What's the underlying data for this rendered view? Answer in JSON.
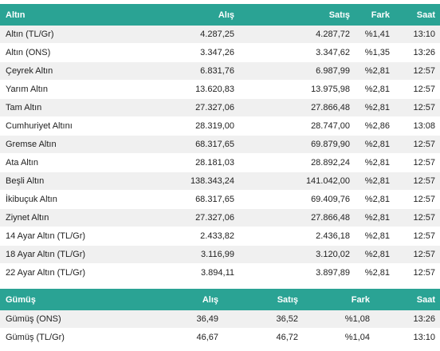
{
  "gold": {
    "headers": [
      "Altın",
      "Alış",
      "Satış",
      "Fark",
      "Saat"
    ],
    "rows": [
      {
        "name": "Altın (TL/Gr)",
        "alis": "4.287,25",
        "satis": "4.287,72",
        "fark": "%1,41",
        "saat": "13:10"
      },
      {
        "name": "Altın (ONS)",
        "alis": "3.347,26",
        "satis": "3.347,62",
        "fark": "%1,35",
        "saat": "13:26"
      },
      {
        "name": "Çeyrek Altın",
        "alis": "6.831,76",
        "satis": "6.987,99",
        "fark": "%2,81",
        "saat": "12:57"
      },
      {
        "name": "Yarım Altın",
        "alis": "13.620,83",
        "satis": "13.975,98",
        "fark": "%2,81",
        "saat": "12:57"
      },
      {
        "name": "Tam Altın",
        "alis": "27.327,06",
        "satis": "27.866,48",
        "fark": "%2,81",
        "saat": "12:57"
      },
      {
        "name": "Cumhuriyet Altını",
        "alis": "28.319,00",
        "satis": "28.747,00",
        "fark": "%2,86",
        "saat": "13:08"
      },
      {
        "name": "Gremse Altın",
        "alis": "68.317,65",
        "satis": "69.879,90",
        "fark": "%2,81",
        "saat": "12:57"
      },
      {
        "name": "Ata Altın",
        "alis": "28.181,03",
        "satis": "28.892,24",
        "fark": "%2,81",
        "saat": "12:57"
      },
      {
        "name": "Beşli Altın",
        "alis": "138.343,24",
        "satis": "141.042,00",
        "fark": "%2,81",
        "saat": "12:57"
      },
      {
        "name": "İkibuçuk Altın",
        "alis": "68.317,65",
        "satis": "69.409,76",
        "fark": "%2,81",
        "saat": "12:57"
      },
      {
        "name": "Ziynet Altın",
        "alis": "27.327,06",
        "satis": "27.866,48",
        "fark": "%2,81",
        "saat": "12:57"
      },
      {
        "name": "14 Ayar Altın (TL/Gr)",
        "alis": "2.433,82",
        "satis": "2.436,18",
        "fark": "%2,81",
        "saat": "12:57"
      },
      {
        "name": "18 Ayar Altın (TL/Gr)",
        "alis": "3.116,99",
        "satis": "3.120,02",
        "fark": "%2,81",
        "saat": "12:57"
      },
      {
        "name": "22 Ayar Altın (TL/Gr)",
        "alis": "3.894,11",
        "satis": "3.897,89",
        "fark": "%2,81",
        "saat": "12:57"
      }
    ]
  },
  "silver": {
    "headers": [
      "Gümüş",
      "Alış",
      "Satış",
      "Fark",
      "Saat"
    ],
    "rows": [
      {
        "name": "Gümüş (ONS)",
        "alis": "36,49",
        "satis": "36,52",
        "fark": "%1,08",
        "saat": "13:26"
      },
      {
        "name": "Gümüş (TL/Gr)",
        "alis": "46,67",
        "satis": "46,72",
        "fark": "%1,04",
        "saat": "13:10"
      }
    ]
  },
  "colors": {
    "header_bg": "#2aa394",
    "header_text": "#ffffff",
    "row_alt": "#f0f0f0"
  }
}
